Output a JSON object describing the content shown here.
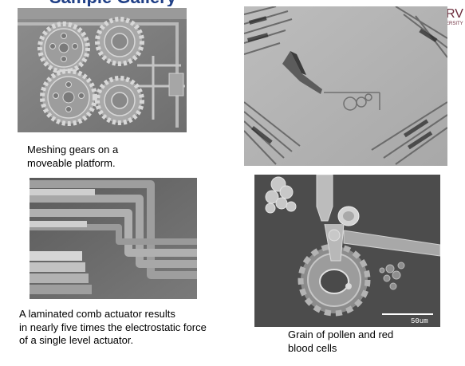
{
  "header": {
    "title_fragment": "Sample Gallery",
    "brand_text": "RV",
    "brand_subtext": "ERSITY"
  },
  "images": [
    {
      "name": "gears-photo",
      "caption_lines": [
        "Meshing gears on a",
        "moveable platform."
      ]
    },
    {
      "name": "mirror-array-photo",
      "caption_lines": []
    },
    {
      "name": "comb-actuator-photo",
      "caption_lines": [
        "A laminated comb actuator results",
        "in nearly five times the electrostatic force",
        "of a single level actuator."
      ]
    },
    {
      "name": "pollen-photo",
      "caption_lines": [
        "Grain of pollen and red",
        "blood cells"
      ],
      "scale_bar_label": "50um"
    }
  ]
}
